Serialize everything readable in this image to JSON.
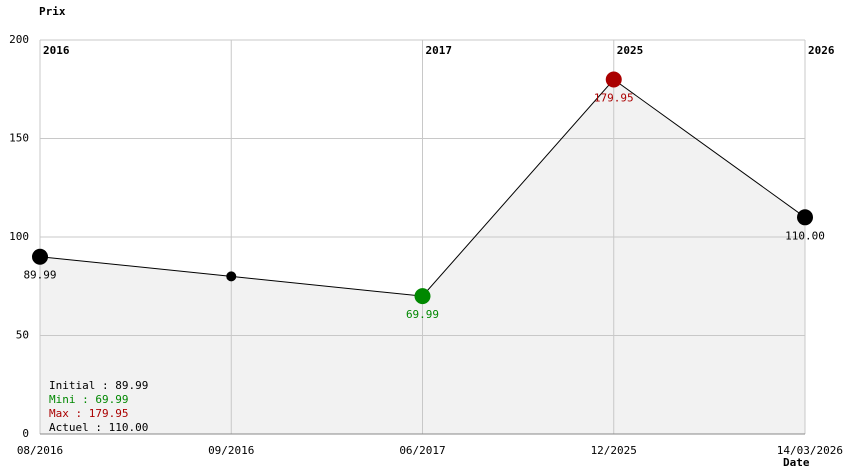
{
  "chart_data": {
    "type": "line",
    "y_axis_title": "Prix",
    "x_axis_title": "Date",
    "categories": [
      "08/2016",
      "09/2016",
      "06/2017",
      "12/2025",
      "14/03/2026"
    ],
    "year_labels": [
      "2016",
      null,
      "2017",
      "2025",
      "2026"
    ],
    "values": [
      89.99,
      80,
      69.99,
      179.95,
      110.0
    ],
    "value_labels": [
      "89.99",
      null,
      "69.99",
      "179.95",
      "110.00"
    ],
    "point_colors": [
      "#000000",
      "#000000",
      "#008800",
      "#aa0000",
      "#000000"
    ],
    "line_color": "#000000",
    "area_color": "#f2f2f2",
    "ylim": [
      0,
      200
    ],
    "yticks": [
      0,
      50,
      100,
      150,
      200
    ],
    "grid": true,
    "summary": [
      {
        "text": "Initial : 89.99",
        "color": "#000000"
      },
      {
        "text": "Mini : 69.99",
        "color": "#008800"
      },
      {
        "text": "Max : 179.95",
        "color": "#aa0000"
      },
      {
        "text": "Actuel : 110.00",
        "color": "#000000"
      }
    ]
  }
}
